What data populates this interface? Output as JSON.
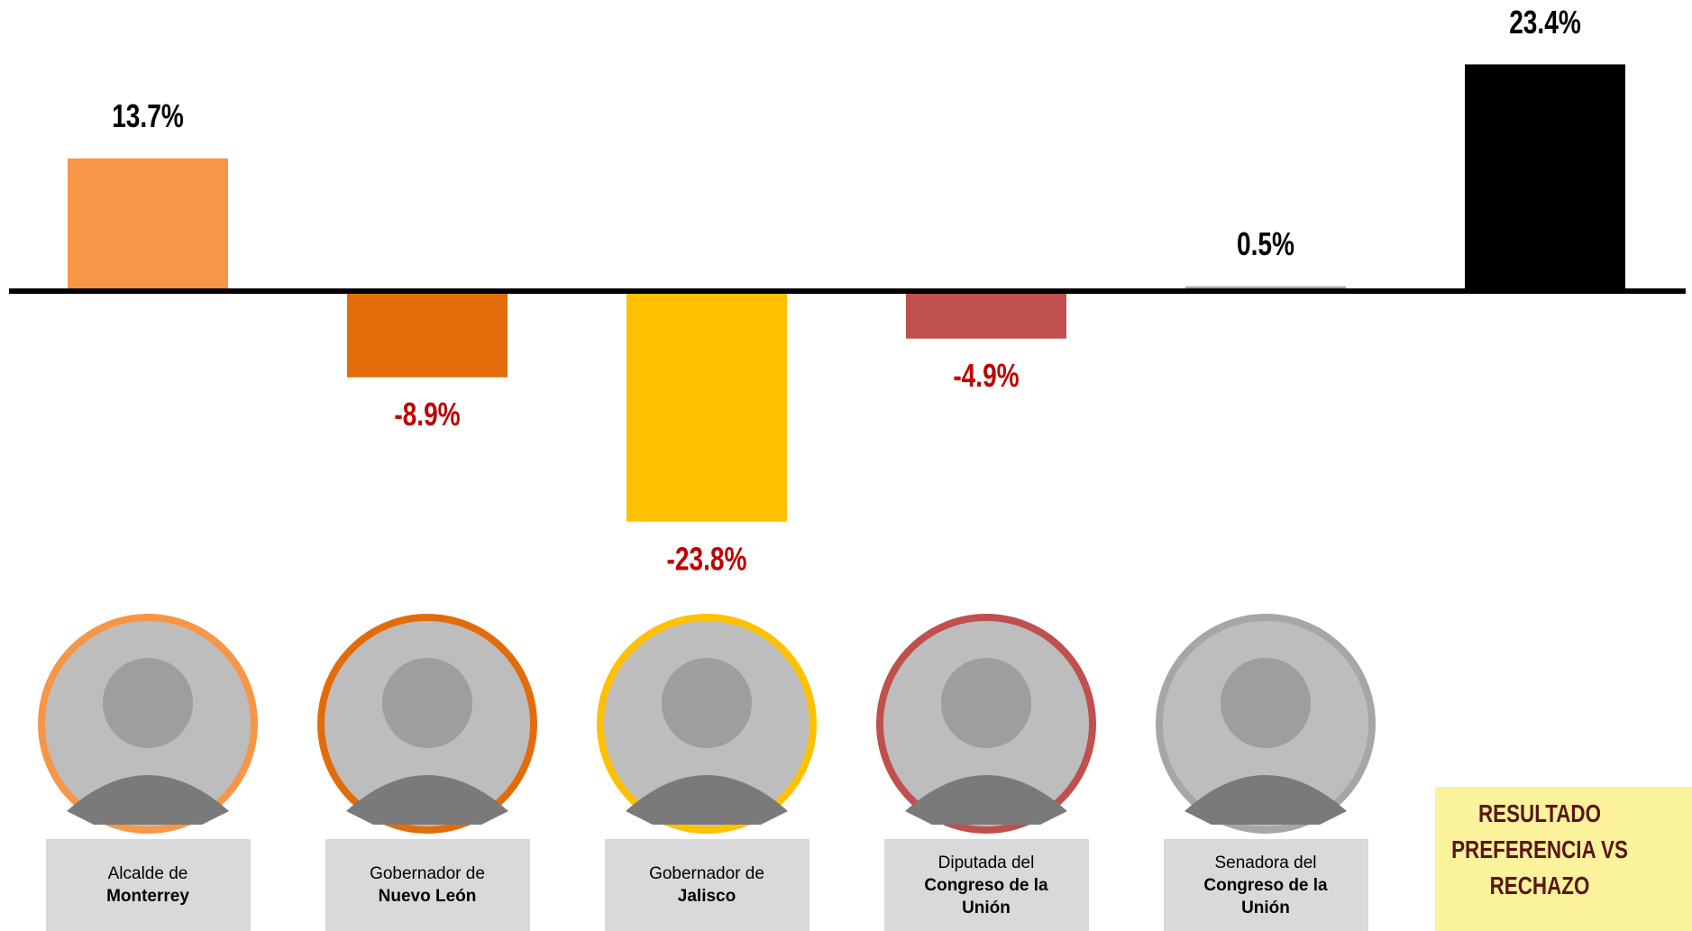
{
  "chart_data": {
    "type": "bar",
    "categories": [
      {
        "prefix": "Alcalde de",
        "name": "Monterrey"
      },
      {
        "prefix": "Gobernador de",
        "name": "Nuevo León"
      },
      {
        "prefix": "Gobernador de",
        "name": "Jalisco"
      },
      {
        "prefix": "Diputada del",
        "name": "Congreso de la Unión"
      },
      {
        "prefix": "Senadora del",
        "name": "Congreso de la Unión"
      },
      null
    ],
    "values": [
      13.7,
      -8.9,
      -23.8,
      -4.9,
      0.5,
      23.4
    ],
    "value_labels": [
      "13.7%",
      "-8.9%",
      "-23.8%",
      "-4.9%",
      "0.5%",
      "23.4%"
    ],
    "colors": [
      "#F79646",
      "#E36C0A",
      "#FFC000",
      "#C0504D",
      "#A6A6A6",
      "#000000"
    ],
    "positive_label_color": "#000000",
    "negative_label_color": "#C00000",
    "note": [
      "RESULTADO",
      "PREFERENCIA VS",
      "RECHAZO"
    ]
  }
}
